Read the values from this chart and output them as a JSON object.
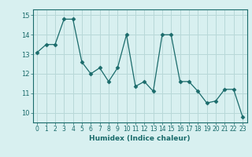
{
  "x": [
    0,
    1,
    2,
    3,
    4,
    5,
    6,
    7,
    8,
    9,
    10,
    11,
    12,
    13,
    14,
    15,
    16,
    17,
    18,
    19,
    20,
    21,
    22,
    23
  ],
  "y": [
    13.1,
    13.5,
    13.5,
    14.8,
    14.8,
    12.6,
    12.0,
    12.3,
    11.6,
    12.3,
    14.0,
    11.35,
    11.6,
    11.1,
    14.0,
    14.0,
    11.6,
    11.6,
    11.1,
    10.5,
    10.6,
    11.2,
    11.2,
    9.8
  ],
  "line_color": "#1a6b6b",
  "marker": "D",
  "marker_size": 2.5,
  "bg_color": "#d8f0f0",
  "grid_color": "#b8d8d8",
  "xlabel": "Humidex (Indice chaleur)",
  "xlim": [
    -0.5,
    23.5
  ],
  "ylim": [
    9.5,
    15.3
  ],
  "yticks": [
    10,
    11,
    12,
    13,
    14,
    15
  ],
  "xticks": [
    0,
    1,
    2,
    3,
    4,
    5,
    6,
    7,
    8,
    9,
    10,
    11,
    12,
    13,
    14,
    15,
    16,
    17,
    18,
    19,
    20,
    21,
    22,
    23
  ],
  "tick_fontsize": 5.5,
  "xlabel_fontsize": 6.5
}
